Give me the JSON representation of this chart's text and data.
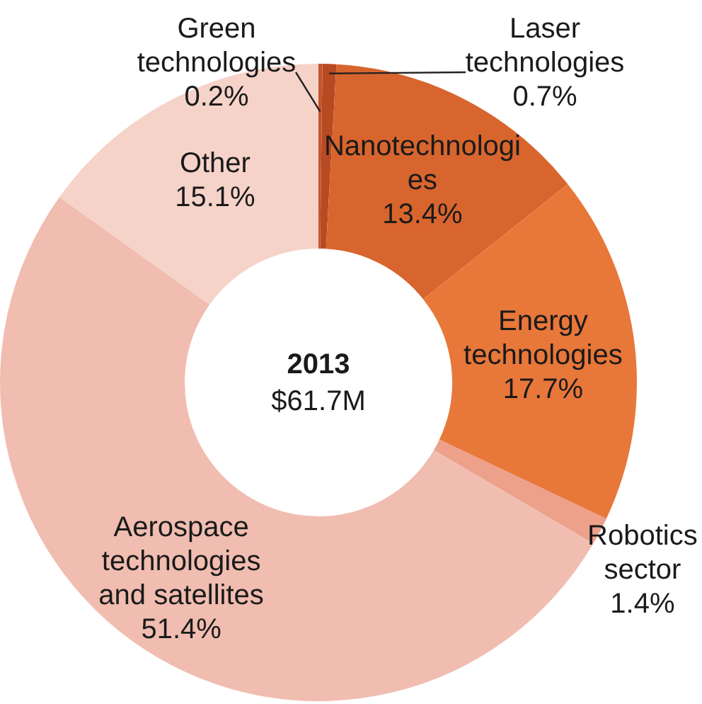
{
  "chart_data": {
    "type": "donut",
    "title": "2013",
    "subtitle": "$61.7M",
    "categories": [
      "Green technologies",
      "Laser technologies",
      "Nanotechnologies",
      "Energy technologies",
      "Robotics sector",
      "Aerospace technologies and satellites",
      "Other"
    ],
    "values": [
      0.2,
      0.7,
      13.4,
      17.7,
      1.4,
      51.4,
      15.1
    ],
    "value_labels": [
      "0.2%",
      "0.7%",
      "13.4%",
      "17.7%",
      "1.4%",
      "51.4%",
      "15.1%"
    ],
    "colors": [
      "#c4552c",
      "#b84a22",
      "#d8652e",
      "#e8773a",
      "#eda08a",
      "#f0bdb0",
      "#f6d3c9"
    ],
    "legend": false
  }
}
